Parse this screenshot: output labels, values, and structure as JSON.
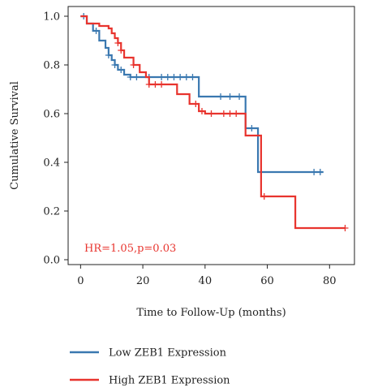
{
  "chart_data": {
    "type": "line",
    "subtype": "kaplan-meier",
    "title": "",
    "xlabel": "Time to Follow-Up (months)",
    "ylabel": "Cumulative Survival",
    "xlim": [
      -4,
      88
    ],
    "ylim": [
      -0.02,
      1.04
    ],
    "x_ticks": [
      0,
      20,
      40,
      60,
      80
    ],
    "y_ticks": [
      0.0,
      0.2,
      0.4,
      0.6,
      0.8,
      1.0
    ],
    "x_tick_labels": [
      "0",
      "20",
      "40",
      "60",
      "80"
    ],
    "y_tick_labels": [
      "0.0",
      "0.2",
      "0.4",
      "0.6",
      "0.8",
      "1.0"
    ],
    "grid": false,
    "legend_position": "bottom",
    "annotation": "HR=1.05,p=0.03",
    "annotation_color": "#e8342e",
    "series": [
      {
        "name": "Low ZEB1 Expression",
        "color": "#3a78b0",
        "steps": [
          [
            0,
            1.0
          ],
          [
            2,
            0.97
          ],
          [
            4,
            0.94
          ],
          [
            6,
            0.9
          ],
          [
            8,
            0.87
          ],
          [
            9,
            0.84
          ],
          [
            10,
            0.82
          ],
          [
            11,
            0.8
          ],
          [
            12,
            0.78
          ],
          [
            14,
            0.76
          ],
          [
            16,
            0.75
          ],
          [
            38,
            0.67
          ],
          [
            53,
            0.54
          ],
          [
            57,
            0.36
          ],
          [
            78,
            0.36
          ]
        ],
        "censors": [
          [
            1,
            1.0
          ],
          [
            5,
            0.94
          ],
          [
            9,
            0.84
          ],
          [
            11,
            0.8
          ],
          [
            13,
            0.78
          ],
          [
            16,
            0.75
          ],
          [
            18,
            0.75
          ],
          [
            22,
            0.75
          ],
          [
            26,
            0.75
          ],
          [
            28,
            0.75
          ],
          [
            30,
            0.75
          ],
          [
            32,
            0.75
          ],
          [
            34,
            0.75
          ],
          [
            36,
            0.75
          ],
          [
            45,
            0.67
          ],
          [
            48,
            0.67
          ],
          [
            51,
            0.67
          ],
          [
            55,
            0.54
          ],
          [
            75,
            0.36
          ],
          [
            77,
            0.36
          ]
        ]
      },
      {
        "name": "High ZEB1 Expression",
        "color": "#e8342e",
        "steps": [
          [
            0,
            1.0
          ],
          [
            2,
            0.97
          ],
          [
            6,
            0.96
          ],
          [
            9,
            0.95
          ],
          [
            10,
            0.93
          ],
          [
            11,
            0.91
          ],
          [
            12,
            0.89
          ],
          [
            13,
            0.86
          ],
          [
            14,
            0.83
          ],
          [
            17,
            0.8
          ],
          [
            19,
            0.77
          ],
          [
            21,
            0.75
          ],
          [
            22,
            0.72
          ],
          [
            31,
            0.68
          ],
          [
            35,
            0.64
          ],
          [
            38,
            0.61
          ],
          [
            40,
            0.6
          ],
          [
            53,
            0.51
          ],
          [
            58,
            0.26
          ],
          [
            69,
            0.13
          ],
          [
            85,
            0.13
          ]
        ],
        "censors": [
          [
            12,
            0.89
          ],
          [
            13,
            0.86
          ],
          [
            17,
            0.8
          ],
          [
            22,
            0.72
          ],
          [
            24,
            0.72
          ],
          [
            26,
            0.72
          ],
          [
            37,
            0.64
          ],
          [
            39,
            0.61
          ],
          [
            42,
            0.6
          ],
          [
            46,
            0.6
          ],
          [
            48,
            0.6
          ],
          [
            50,
            0.6
          ],
          [
            59,
            0.26
          ],
          [
            85,
            0.13
          ]
        ]
      }
    ]
  }
}
